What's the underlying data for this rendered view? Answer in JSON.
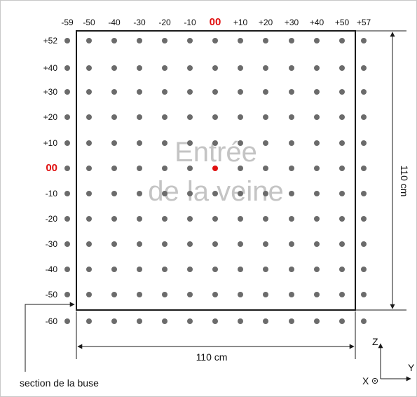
{
  "diagram": {
    "column_labels": [
      "-59",
      "-50",
      "-40",
      "-30",
      "-20",
      "-10",
      "00",
      "+10",
      "+20",
      "+30",
      "+40",
      "+50",
      "+57"
    ],
    "row_labels": [
      "+52",
      "+40",
      "+30",
      "+20",
      "+10",
      "00",
      "-10",
      "-20",
      "-30",
      "-40",
      "-50",
      "-60"
    ],
    "origin_label": "00",
    "center_text_line1": "Entrée",
    "center_text_line2": "de la veine",
    "width_label": "110 cm",
    "height_label": "110 cm",
    "nozzle_label": "section de la buse",
    "axes": {
      "z": "Z",
      "y": "Y",
      "x": "X"
    },
    "colors": {
      "dot": "#6b6b6b",
      "highlight": "#e01010",
      "outline": "#1a1a1a",
      "watermark": "#c4c4c4",
      "text": "#111111"
    }
  }
}
